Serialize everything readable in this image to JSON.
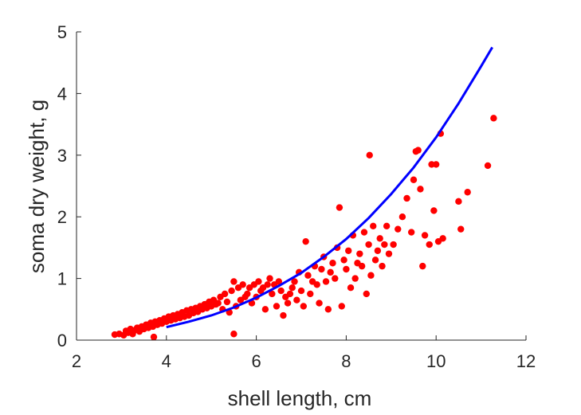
{
  "chart_data": {
    "type": "scatter",
    "xlabel": "shell length, cm",
    "ylabel": "soma dry weight, g",
    "xlim": [
      2,
      12
    ],
    "ylim": [
      0,
      5
    ],
    "xticks": [
      "2",
      "4",
      "6",
      "8",
      "10",
      "12"
    ],
    "yticks": [
      "0",
      "1",
      "2",
      "3",
      "4",
      "5"
    ],
    "grid": false,
    "legend": "none",
    "series": [
      {
        "kind": "points",
        "color": "#ff0000",
        "points": [
          [
            2.85,
            0.09
          ],
          [
            2.95,
            0.1
          ],
          [
            3.05,
            0.08
          ],
          [
            3.1,
            0.15
          ],
          [
            3.15,
            0.12
          ],
          [
            3.2,
            0.18
          ],
          [
            3.25,
            0.1
          ],
          [
            3.3,
            0.16
          ],
          [
            3.35,
            0.2
          ],
          [
            3.4,
            0.14
          ],
          [
            3.45,
            0.22
          ],
          [
            3.5,
            0.18
          ],
          [
            3.55,
            0.25
          ],
          [
            3.6,
            0.2
          ],
          [
            3.65,
            0.28
          ],
          [
            3.7,
            0.22
          ],
          [
            3.72,
            0.05
          ],
          [
            3.75,
            0.3
          ],
          [
            3.8,
            0.25
          ],
          [
            3.85,
            0.32
          ],
          [
            3.9,
            0.27
          ],
          [
            3.95,
            0.35
          ],
          [
            4.0,
            0.3
          ],
          [
            4.05,
            0.38
          ],
          [
            4.1,
            0.32
          ],
          [
            4.15,
            0.4
          ],
          [
            4.2,
            0.34
          ],
          [
            4.25,
            0.42
          ],
          [
            4.3,
            0.36
          ],
          [
            4.35,
            0.45
          ],
          [
            4.4,
            0.38
          ],
          [
            4.45,
            0.48
          ],
          [
            4.5,
            0.4
          ],
          [
            4.55,
            0.5
          ],
          [
            4.6,
            0.44
          ],
          [
            4.65,
            0.52
          ],
          [
            4.7,
            0.46
          ],
          [
            4.75,
            0.55
          ],
          [
            4.8,
            0.5
          ],
          [
            4.85,
            0.58
          ],
          [
            4.9,
            0.52
          ],
          [
            4.95,
            0.62
          ],
          [
            5.0,
            0.55
          ],
          [
            5.05,
            0.65
          ],
          [
            5.1,
            0.58
          ],
          [
            5.15,
            0.6
          ],
          [
            5.2,
            0.7
          ],
          [
            5.25,
            0.5
          ],
          [
            5.3,
            0.75
          ],
          [
            5.35,
            0.62
          ],
          [
            5.4,
            0.45
          ],
          [
            5.45,
            0.8
          ],
          [
            5.5,
            0.95
          ],
          [
            5.5,
            0.1
          ],
          [
            5.55,
            0.55
          ],
          [
            5.6,
            0.85
          ],
          [
            5.65,
            0.65
          ],
          [
            5.7,
            0.9
          ],
          [
            5.75,
            0.7
          ],
          [
            5.8,
            0.75
          ],
          [
            5.85,
            0.85
          ],
          [
            5.9,
            0.6
          ],
          [
            5.95,
            0.9
          ],
          [
            6.0,
            0.7
          ],
          [
            6.05,
            0.95
          ],
          [
            6.1,
            0.8
          ],
          [
            6.15,
            0.85
          ],
          [
            6.2,
            0.5
          ],
          [
            6.25,
            0.9
          ],
          [
            6.3,
            1.0
          ],
          [
            6.35,
            0.75
          ],
          [
            6.4,
            0.9
          ],
          [
            6.45,
            0.55
          ],
          [
            6.5,
            0.95
          ],
          [
            6.55,
            0.8
          ],
          [
            6.6,
            0.4
          ],
          [
            6.65,
            0.7
          ],
          [
            6.7,
            0.6
          ],
          [
            6.75,
            0.75
          ],
          [
            6.8,
            0.85
          ],
          [
            6.85,
            0.95
          ],
          [
            6.9,
            0.65
          ],
          [
            6.95,
            1.1
          ],
          [
            7.0,
            0.8
          ],
          [
            7.05,
            0.55
          ],
          [
            7.1,
            1.6
          ],
          [
            7.15,
            1.05
          ],
          [
            7.2,
            0.75
          ],
          [
            7.25,
            0.95
          ],
          [
            7.3,
            1.2
          ],
          [
            7.35,
            0.9
          ],
          [
            7.4,
            0.6
          ],
          [
            7.45,
            1.15
          ],
          [
            7.5,
            1.35
          ],
          [
            7.55,
            0.95
          ],
          [
            7.6,
            0.5
          ],
          [
            7.65,
            1.1
          ],
          [
            7.7,
            1.25
          ],
          [
            7.75,
            1.0
          ],
          [
            7.8,
            1.5
          ],
          [
            7.85,
            2.15
          ],
          [
            7.9,
            0.55
          ],
          [
            7.95,
            1.3
          ],
          [
            8.0,
            1.15
          ],
          [
            8.05,
            1.45
          ],
          [
            8.1,
            0.85
          ],
          [
            8.15,
            1.7
          ],
          [
            8.2,
            1.0
          ],
          [
            8.25,
            1.25
          ],
          [
            8.3,
            1.4
          ],
          [
            8.35,
            1.2
          ],
          [
            8.4,
            1.75
          ],
          [
            8.45,
            0.75
          ],
          [
            8.5,
            1.55
          ],
          [
            8.52,
            3.0
          ],
          [
            8.55,
            1.05
          ],
          [
            8.6,
            1.85
          ],
          [
            8.65,
            1.3
          ],
          [
            8.7,
            1.45
          ],
          [
            8.75,
            1.65
          ],
          [
            8.8,
            1.2
          ],
          [
            8.85,
            1.55
          ],
          [
            8.9,
            1.85
          ],
          [
            8.95,
            1.4
          ],
          [
            9.05,
            1.55
          ],
          [
            9.15,
            1.8
          ],
          [
            9.25,
            2.0
          ],
          [
            9.35,
            2.3
          ],
          [
            9.45,
            1.75
          ],
          [
            9.5,
            2.6
          ],
          [
            9.55,
            3.06
          ],
          [
            9.6,
            3.08
          ],
          [
            9.65,
            2.45
          ],
          [
            9.7,
            1.2
          ],
          [
            9.75,
            1.7
          ],
          [
            9.85,
            1.55
          ],
          [
            9.9,
            2.85
          ],
          [
            9.95,
            2.1
          ],
          [
            10.0,
            2.85
          ],
          [
            10.05,
            1.6
          ],
          [
            10.1,
            3.35
          ],
          [
            10.15,
            1.65
          ],
          [
            10.5,
            2.25
          ],
          [
            10.55,
            1.8
          ],
          [
            10.7,
            2.4
          ],
          [
            11.15,
            2.83
          ],
          [
            11.28,
            3.6
          ]
        ]
      },
      {
        "kind": "fit-line",
        "color": "#0000ff",
        "x": [
          4.0,
          4.5,
          5.0,
          5.5,
          6.0,
          6.5,
          7.0,
          7.5,
          8.0,
          8.5,
          9.0,
          9.5,
          10.0,
          10.5,
          11.0,
          11.25
        ],
        "y": [
          0.21,
          0.3,
          0.4,
          0.53,
          0.69,
          0.88,
          1.09,
          1.35,
          1.64,
          1.98,
          2.37,
          2.8,
          3.29,
          3.84,
          4.44,
          4.75
        ]
      }
    ]
  }
}
